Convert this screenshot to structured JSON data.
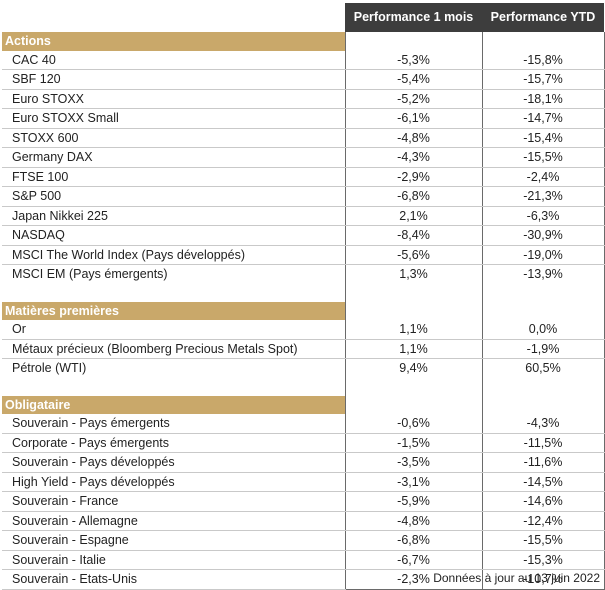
{
  "header": {
    "col1": "Performance 1 mois",
    "col2": "Performance YTD"
  },
  "sections": [
    {
      "title": "Actions",
      "rows": [
        {
          "name": "CAC 40",
          "m1": "-5,3%",
          "ytd": "-15,8%"
        },
        {
          "name": "SBF 120",
          "m1": "-5,4%",
          "ytd": "-15,7%"
        },
        {
          "name": "Euro STOXX",
          "m1": "-5,2%",
          "ytd": "-18,1%"
        },
        {
          "name": "Euro STOXX Small",
          "m1": "-6,1%",
          "ytd": "-14,7%"
        },
        {
          "name": "STOXX 600",
          "m1": "-4,8%",
          "ytd": "-15,4%"
        },
        {
          "name": "Germany DAX",
          "m1": "-4,3%",
          "ytd": "-15,5%"
        },
        {
          "name": "FTSE 100",
          "m1": "-2,9%",
          "ytd": "-2,4%"
        },
        {
          "name": "S&P 500",
          "m1": "-6,8%",
          "ytd": "-21,3%"
        },
        {
          "name": "Japan Nikkei 225",
          "m1": "2,1%",
          "ytd": "-6,3%"
        },
        {
          "name": "NASDAQ",
          "m1": "-8,4%",
          "ytd": "-30,9%"
        },
        {
          "name": "MSCI The World Index (Pays développés)",
          "m1": "-5,6%",
          "ytd": "-19,0%"
        },
        {
          "name": "MSCI EM (Pays émergents)",
          "m1": "1,3%",
          "ytd": "-13,9%"
        }
      ]
    },
    {
      "title": "Matières premières",
      "rows": [
        {
          "name": "Or",
          "m1": "1,1%",
          "ytd": "0,0%"
        },
        {
          "name": "Métaux précieux (Bloomberg Precious Metals Spot)",
          "m1": "1,1%",
          "ytd": "-1,9%"
        },
        {
          "name": "Pétrole (WTI)",
          "m1": "9,4%",
          "ytd": "60,5%"
        }
      ]
    },
    {
      "title": "Obligataire",
      "rows": [
        {
          "name": "Souverain - Pays émergents",
          "m1": "-0,6%",
          "ytd": "-4,3%"
        },
        {
          "name": "Corporate - Pays émergents",
          "m1": "-1,5%",
          "ytd": "-11,5%"
        },
        {
          "name": "Souverain - Pays développés",
          "m1": "-3,5%",
          "ytd": "-11,6%"
        },
        {
          "name": "High Yield - Pays développés",
          "m1": "-3,1%",
          "ytd": "-14,5%"
        },
        {
          "name": "Souverain - France",
          "m1": "-5,9%",
          "ytd": "-14,6%"
        },
        {
          "name": "Souverain - Allemagne",
          "m1": "-4,8%",
          "ytd": "-12,4%"
        },
        {
          "name": "Souverain - Espagne",
          "m1": "-6,8%",
          "ytd": "-15,5%"
        },
        {
          "name": "Souverain - Italie",
          "m1": "-6,7%",
          "ytd": "-15,3%"
        },
        {
          "name": "Souverain - Etats-Unis",
          "m1": "-2,3%",
          "ytd": "-10,7%"
        }
      ]
    }
  ],
  "footnote": "Données à jour au 13 juin 2022"
}
